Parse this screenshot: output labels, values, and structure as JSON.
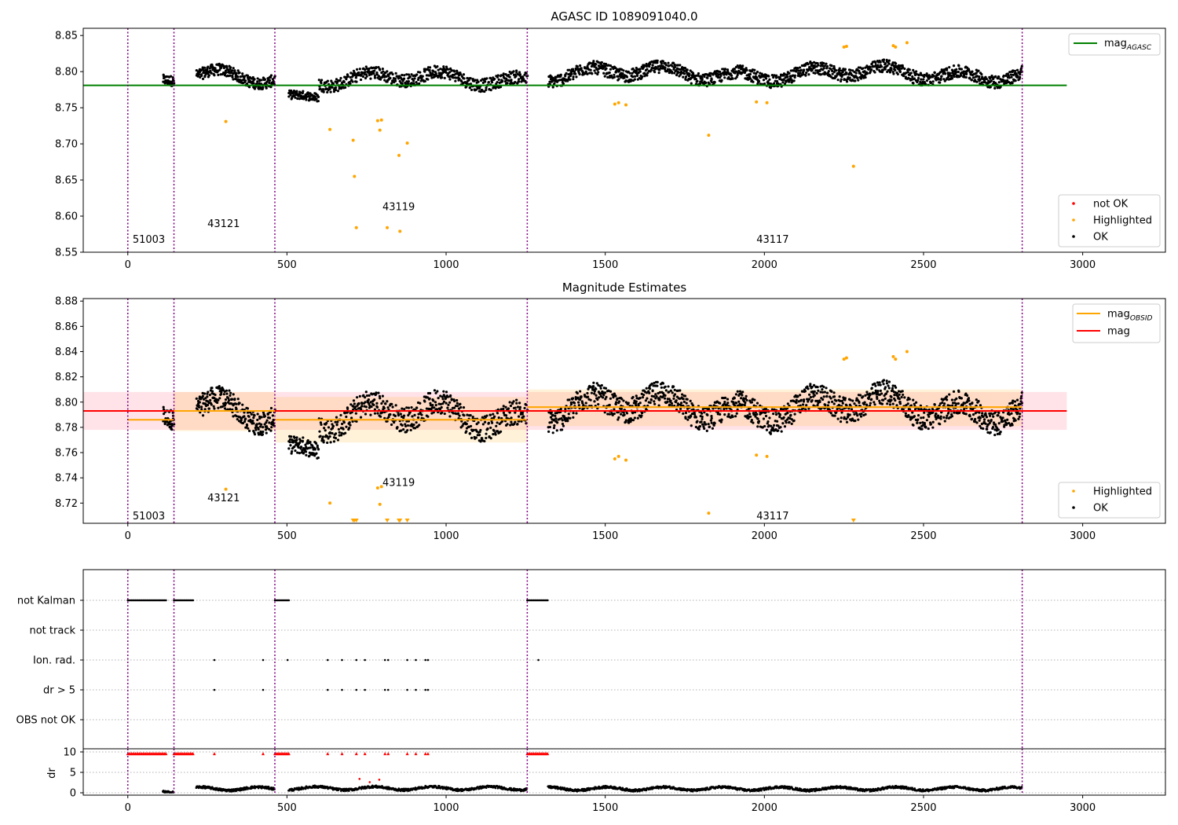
{
  "chart_data": [
    {
      "type": "scatter",
      "title": "AGASC ID 1089091040.0",
      "xlabel": "",
      "ylabel": "",
      "xlim": [
        -140,
        3260
      ],
      "ylim": [
        8.55,
        8.86
      ],
      "xticks": [
        0,
        500,
        1000,
        1500,
        2000,
        2500,
        3000
      ],
      "yticks": [
        8.55,
        8.6,
        8.65,
        8.7,
        8.75,
        8.8,
        8.85
      ],
      "ytick_decimals": 2,
      "grid": false,
      "obsid_boundaries": [
        0,
        145,
        462,
        1255,
        2810
      ],
      "obsid_labels": [
        {
          "text": "51003",
          "x": 15,
          "y": 8.563
        },
        {
          "text": "43121",
          "x": 250,
          "y": 8.585
        },
        {
          "text": "43119",
          "x": 800,
          "y": 8.608
        },
        {
          "text": "43117",
          "x": 1975,
          "y": 8.563
        }
      ],
      "lines": [
        {
          "name": "mag_AGASC",
          "label_main": "mag",
          "label_sub": "AGASC",
          "color": "#008000",
          "x": [
            -140,
            2950
          ],
          "y": [
            8.781,
            8.781
          ]
        }
      ],
      "highlighted_points": [
        {
          "x": 308,
          "y": 8.731
        },
        {
          "x": 635,
          "y": 8.72
        },
        {
          "x": 708,
          "y": 8.705
        },
        {
          "x": 712,
          "y": 8.655
        },
        {
          "x": 718,
          "y": 8.584
        },
        {
          "x": 785,
          "y": 8.732
        },
        {
          "x": 792,
          "y": 8.719
        },
        {
          "x": 797,
          "y": 8.733
        },
        {
          "x": 815,
          "y": 8.584
        },
        {
          "x": 852,
          "y": 8.684
        },
        {
          "x": 855,
          "y": 8.579
        },
        {
          "x": 878,
          "y": 8.701
        },
        {
          "x": 1530,
          "y": 8.755
        },
        {
          "x": 1542,
          "y": 8.757
        },
        {
          "x": 1565,
          "y": 8.754
        },
        {
          "x": 1825,
          "y": 8.712
        },
        {
          "x": 1975,
          "y": 8.758
        },
        {
          "x": 2008,
          "y": 8.757
        },
        {
          "x": 2250,
          "y": 8.834
        },
        {
          "x": 2258,
          "y": 8.835
        },
        {
          "x": 2280,
          "y": 8.669
        },
        {
          "x": 2405,
          "y": 8.836
        },
        {
          "x": 2412,
          "y": 8.834
        },
        {
          "x": 2448,
          "y": 8.84
        }
      ],
      "ok_segments": [
        {
          "x0": 110,
          "x1": 145,
          "n": 40,
          "base": 8.787,
          "amp": 0.004,
          "noise": 0.007
        },
        {
          "x0": 215,
          "x1": 462,
          "n": 250,
          "base": 8.793,
          "amp": 0.012,
          "noise": 0.008
        },
        {
          "x0": 505,
          "x1": 600,
          "n": 90,
          "base": 8.767,
          "amp": 0.005,
          "noise": 0.006
        },
        {
          "x0": 600,
          "x1": 1255,
          "n": 520,
          "base": 8.79,
          "amp": 0.012,
          "noise": 0.009
        },
        {
          "x0": 1320,
          "x1": 2810,
          "n": 1350,
          "base": 8.797,
          "amp": 0.012,
          "noise": 0.009
        }
      ],
      "legends": [
        {
          "position": "upper-right",
          "items": [
            {
              "label_main": "mag",
              "label_sub": "AGASC",
              "color": "#008000",
              "kind": "line"
            }
          ]
        },
        {
          "position": "lower-right",
          "items": [
            {
              "label": "not OK",
              "color": "#ff0000",
              "kind": "marker"
            },
            {
              "label": "Highlighted",
              "color": "#ffa500",
              "kind": "marker"
            },
            {
              "label": "OK",
              "color": "#000000",
              "kind": "marker"
            }
          ]
        }
      ]
    },
    {
      "type": "scatter",
      "title": "Magnitude Estimates",
      "xlabel": "",
      "ylabel": "",
      "xlim": [
        -140,
        3260
      ],
      "ylim": [
        8.704,
        8.882
      ],
      "xticks": [
        0,
        500,
        1000,
        1500,
        2000,
        2500,
        3000
      ],
      "yticks": [
        8.72,
        8.74,
        8.76,
        8.78,
        8.8,
        8.82,
        8.84,
        8.86,
        8.88
      ],
      "ytick_decimals": 2,
      "grid": false,
      "obsid_boundaries": [
        0,
        145,
        462,
        1255,
        2810
      ],
      "obsid_labels": [
        {
          "text": "51003",
          "x": 15,
          "y": 8.707
        },
        {
          "text": "43121",
          "x": 250,
          "y": 8.7215
        },
        {
          "text": "43119",
          "x": 800,
          "y": 8.7335
        },
        {
          "text": "43117",
          "x": 1975,
          "y": 8.707
        }
      ],
      "bands": [
        {
          "x0": -140,
          "x1": 2950,
          "y0": 8.778,
          "y1": 8.808,
          "color": "#ffc0cb",
          "opacity": 0.45
        },
        {
          "x0": 145,
          "x1": 462,
          "y0": 8.777,
          "y1": 8.808,
          "color": "#ffa500",
          "opacity": 0.15
        },
        {
          "x0": 462,
          "x1": 1255,
          "y0": 8.768,
          "y1": 8.804,
          "color": "#ffa500",
          "opacity": 0.15
        },
        {
          "x0": 1255,
          "x1": 2810,
          "y0": 8.781,
          "y1": 8.81,
          "color": "#ffa500",
          "opacity": 0.15
        }
      ],
      "lines": [
        {
          "name": "mag",
          "label": "mag",
          "color": "#ff0000",
          "x": [
            -140,
            2950
          ],
          "y": [
            8.793,
            8.793
          ]
        },
        {
          "name": "mag_OBSID_51003",
          "color": "#ffa500",
          "x": [
            0,
            145
          ],
          "y": [
            8.786,
            8.786
          ]
        },
        {
          "name": "mag_OBSID_43121",
          "color": "#ffa500",
          "x": [
            145,
            462
          ],
          "y": [
            8.793,
            8.793
          ]
        },
        {
          "name": "mag_OBSID_43119",
          "color": "#ffa500",
          "x": [
            462,
            1255
          ],
          "y": [
            8.786,
            8.786
          ]
        },
        {
          "name": "mag_OBSID_43117",
          "color": "#ffa500",
          "x": [
            1255,
            2810
          ],
          "y": [
            8.796,
            8.796
          ]
        }
      ],
      "highlighted_points": [
        {
          "x": 308,
          "y": 8.731
        },
        {
          "x": 635,
          "y": 8.72
        },
        {
          "x": 785,
          "y": 8.732
        },
        {
          "x": 792,
          "y": 8.719
        },
        {
          "x": 797,
          "y": 8.733
        },
        {
          "x": 1530,
          "y": 8.755
        },
        {
          "x": 1542,
          "y": 8.757
        },
        {
          "x": 1565,
          "y": 8.754
        },
        {
          "x": 1825,
          "y": 8.712
        },
        {
          "x": 1975,
          "y": 8.758
        },
        {
          "x": 2008,
          "y": 8.757
        },
        {
          "x": 2250,
          "y": 8.834
        },
        {
          "x": 2258,
          "y": 8.835
        },
        {
          "x": 2405,
          "y": 8.836
        },
        {
          "x": 2412,
          "y": 8.834
        },
        {
          "x": 2448,
          "y": 8.84
        }
      ],
      "offscale_markers_x": [
        708,
        712,
        718,
        815,
        852,
        855,
        878,
        2280
      ],
      "ok_segments": [
        {
          "x0": 110,
          "x1": 145,
          "n": 40,
          "base": 8.786,
          "amp": 0.005,
          "noise": 0.008
        },
        {
          "x0": 215,
          "x1": 462,
          "n": 250,
          "base": 8.793,
          "amp": 0.013,
          "noise": 0.009
        },
        {
          "x0": 505,
          "x1": 600,
          "n": 90,
          "base": 8.765,
          "amp": 0.006,
          "noise": 0.007
        },
        {
          "x0": 600,
          "x1": 1255,
          "n": 520,
          "base": 8.789,
          "amp": 0.014,
          "noise": 0.01
        },
        {
          "x0": 1320,
          "x1": 2810,
          "n": 1350,
          "base": 8.796,
          "amp": 0.013,
          "noise": 0.01
        }
      ],
      "legends": [
        {
          "position": "upper-right",
          "items": [
            {
              "label_main": "mag",
              "label_sub": "OBSID",
              "color": "#ffa500",
              "kind": "line"
            },
            {
              "label": "mag",
              "color": "#ff0000",
              "kind": "line"
            }
          ]
        },
        {
          "position": "lower-right",
          "items": [
            {
              "label": "Highlighted",
              "color": "#ffa500",
              "kind": "marker"
            },
            {
              "label": "OK",
              "color": "#000000",
              "kind": "marker"
            }
          ]
        }
      ]
    },
    {
      "type": "scatter",
      "title": "",
      "xlim": [
        -140,
        3260
      ],
      "categories": [
        "not Kalman",
        "not track",
        "Ion. rad.",
        "dr > 5",
        "OBS not OK"
      ],
      "grid": true,
      "obsid_boundaries": [
        0,
        145,
        462,
        1255,
        2810
      ],
      "flag_runs": [
        {
          "row": "not Kalman",
          "x0": 0,
          "x1": 120
        },
        {
          "row": "not Kalman",
          "x0": 145,
          "x1": 205
        },
        {
          "row": "not Kalman",
          "x0": 462,
          "x1": 508
        },
        {
          "row": "not Kalman",
          "x0": 1255,
          "x1": 1320
        }
      ],
      "flag_points": [
        {
          "row": "Ion. rad.",
          "xs": [
            272,
            425,
            502,
            628,
            673,
            718,
            745,
            808,
            818,
            878,
            905,
            935,
            943,
            1290
          ]
        },
        {
          "row": "dr > 5",
          "xs": [
            272,
            425,
            628,
            673,
            718,
            745,
            808,
            818,
            878,
            905,
            935,
            943
          ]
        }
      ]
    },
    {
      "type": "scatter",
      "title": "",
      "xlabel": "",
      "ylabel": "dr",
      "xlim": [
        -140,
        3260
      ],
      "ylim": [
        -0.5,
        10
      ],
      "xticks": [
        0,
        500,
        1000,
        1500,
        2000,
        2500,
        3000
      ],
      "yticks": [
        0,
        5,
        10
      ],
      "ytick_decimals": 0,
      "grid": true,
      "obsid_boundaries": [
        0,
        145,
        462,
        1255,
        2810
      ],
      "clipped_runs": [
        {
          "x0": 0,
          "x1": 120
        },
        {
          "x0": 145,
          "x1": 205
        },
        {
          "x0": 462,
          "x1": 508
        },
        {
          "x0": 1255,
          "x1": 1320
        }
      ],
      "clipped_points": [
        272,
        425,
        628,
        673,
        718,
        745,
        808,
        818,
        878,
        905,
        935,
        943
      ],
      "red_points": [
        {
          "x": 728,
          "y": 3.4
        },
        {
          "x": 790,
          "y": 3.2
        },
        {
          "x": 760,
          "y": 2.6
        }
      ],
      "ok_segments": [
        {
          "x0": 110,
          "x1": 145,
          "n": 30,
          "base": 0.5
        },
        {
          "x0": 215,
          "x1": 462,
          "n": 220,
          "base": 1.0
        },
        {
          "x0": 505,
          "x1": 1255,
          "n": 600,
          "base": 1.1
        },
        {
          "x0": 1320,
          "x1": 2810,
          "n": 1200,
          "base": 1.0
        }
      ]
    }
  ]
}
